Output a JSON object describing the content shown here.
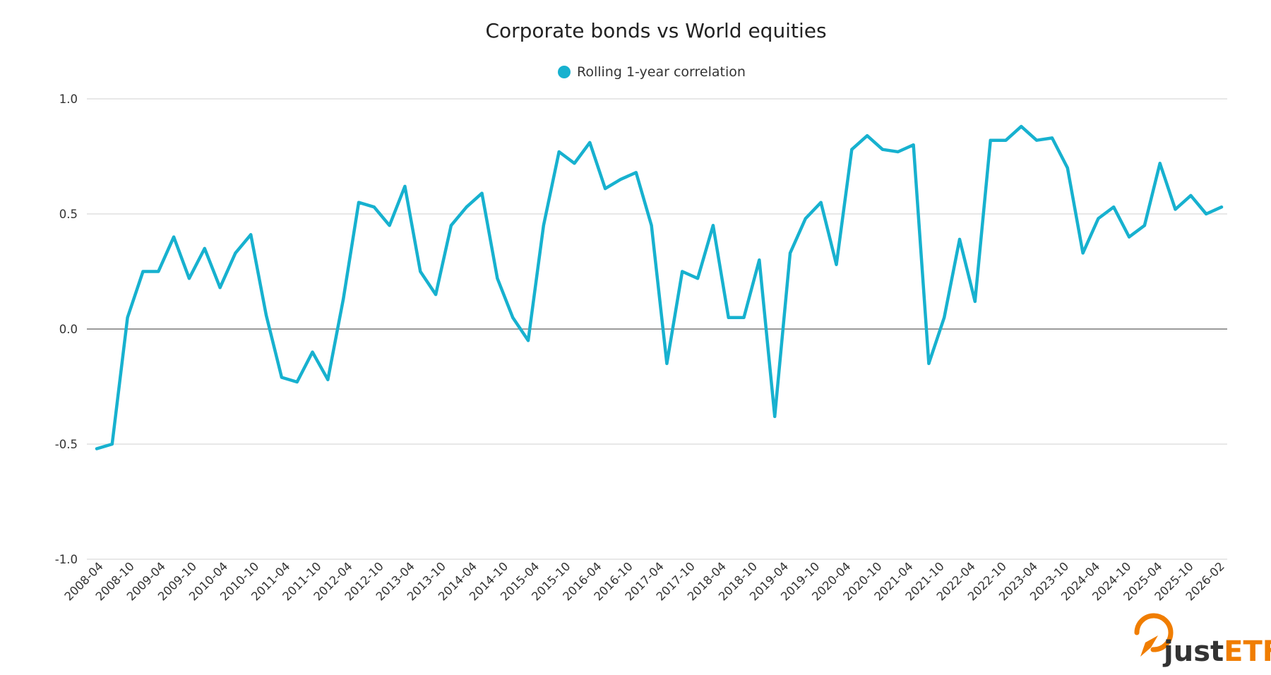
{
  "chart_data": {
    "type": "line",
    "title": "Corporate bonds vs World equities",
    "xlabel": "",
    "ylabel": "",
    "ylim": [
      -1.0,
      1.0
    ],
    "yticks": [
      "1.0",
      "0.5",
      "0.0",
      "-0.5",
      "-1.0"
    ],
    "ytick_values": [
      1.0,
      0.5,
      0.0,
      -0.5,
      -1.0
    ],
    "grid": true,
    "legend_position": "top-center",
    "x_tick_labels": [
      "2008-04",
      "2008-10",
      "2009-04",
      "2009-10",
      "2010-04",
      "2010-10",
      "2011-04",
      "2011-10",
      "2012-04",
      "2012-10",
      "2013-04",
      "2013-10",
      "2014-04",
      "2014-10",
      "2015-04",
      "2015-10",
      "2016-04",
      "2016-10",
      "2017-04",
      "2017-10",
      "2018-04",
      "2018-10",
      "2019-04",
      "2019-10",
      "2020-04",
      "2020-10",
      "2021-04",
      "2021-10",
      "2022-04",
      "2022-10",
      "2023-04",
      "2023-10",
      "2024-04",
      "2024-10",
      "2025-04",
      "2025-10",
      "2026-02"
    ],
    "series": [
      {
        "name": "Rolling 1-year correlation",
        "color": "#17b1cf",
        "values": [
          -0.52,
          -0.5,
          0.05,
          0.25,
          0.25,
          0.4,
          0.22,
          0.35,
          0.18,
          0.33,
          0.41,
          0.06,
          -0.21,
          -0.23,
          -0.1,
          -0.22,
          0.13,
          0.55,
          0.53,
          0.45,
          0.62,
          0.25,
          0.15,
          0.45,
          0.53,
          0.59,
          0.22,
          0.05,
          -0.05,
          0.45,
          0.77,
          0.72,
          0.81,
          0.61,
          0.65,
          0.68,
          0.45,
          -0.15,
          0.25,
          0.22,
          0.45,
          0.05,
          0.05,
          0.3,
          -0.38,
          0.33,
          0.48,
          0.55,
          0.28,
          0.78,
          0.84,
          0.78,
          0.77,
          0.8,
          -0.15,
          0.05,
          0.39,
          0.12,
          0.82,
          0.82,
          0.88,
          0.82,
          0.83,
          0.7,
          0.33,
          0.48,
          0.53,
          0.4,
          0.45,
          0.72,
          0.52,
          0.58,
          0.5,
          0.53
        ]
      }
    ]
  },
  "branding": {
    "logo_text_just": "just",
    "logo_text_etf": "ETF",
    "logo_icon": "justetf-logo-icon",
    "color_dark": "#333333",
    "color_accent": "#f07d00"
  }
}
